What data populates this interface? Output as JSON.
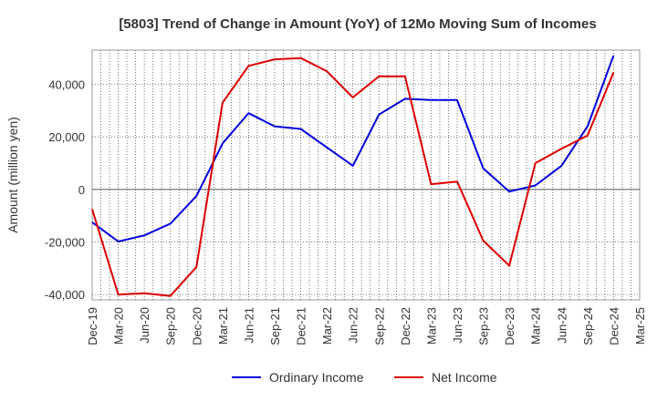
{
  "chart_data": {
    "type": "line",
    "title": "[5803]  Trend of Change in Amount (YoY) of 12Mo Moving Sum of Incomes",
    "ylabel": "Amount (million yen)",
    "xlabel": "",
    "x": [
      "Dec-19",
      "Mar-20",
      "Jun-20",
      "Sep-20",
      "Dec-20",
      "Mar-21",
      "Jun-21",
      "Sep-21",
      "Dec-21",
      "Mar-22",
      "Jun-22",
      "Sep-22",
      "Dec-22",
      "Mar-23",
      "Jun-23",
      "Sep-23",
      "Dec-23",
      "Mar-24",
      "Jun-24",
      "Sep-24",
      "Dec-24",
      "Mar-25"
    ],
    "ylim": [
      -42000,
      53000
    ],
    "yticks": [
      -40000,
      -20000,
      0,
      20000,
      40000
    ],
    "ytick_labels": [
      "-40,000",
      "-20,000",
      "0",
      "20,000",
      "40,000"
    ],
    "grid": true,
    "legend_position": "bottom",
    "series": [
      {
        "name": "Ordinary Income",
        "color": "#0000dd",
        "values": [
          -12500,
          -19800,
          -17500,
          -13000,
          -2500,
          17500,
          29000,
          24000,
          23000,
          16000,
          9000,
          28500,
          34500,
          34000,
          34000,
          8000,
          -800,
          1500,
          9000,
          24000,
          51000,
          null
        ]
      },
      {
        "name": "Net Income",
        "color": "#dd0000",
        "values": [
          -7500,
          -40000,
          -39500,
          -40500,
          -29500,
          33000,
          47000,
          49500,
          50000,
          45000,
          35000,
          43000,
          43000,
          2000,
          3000,
          -19500,
          -29000,
          10000,
          15500,
          20500,
          44500,
          null
        ]
      }
    ]
  }
}
